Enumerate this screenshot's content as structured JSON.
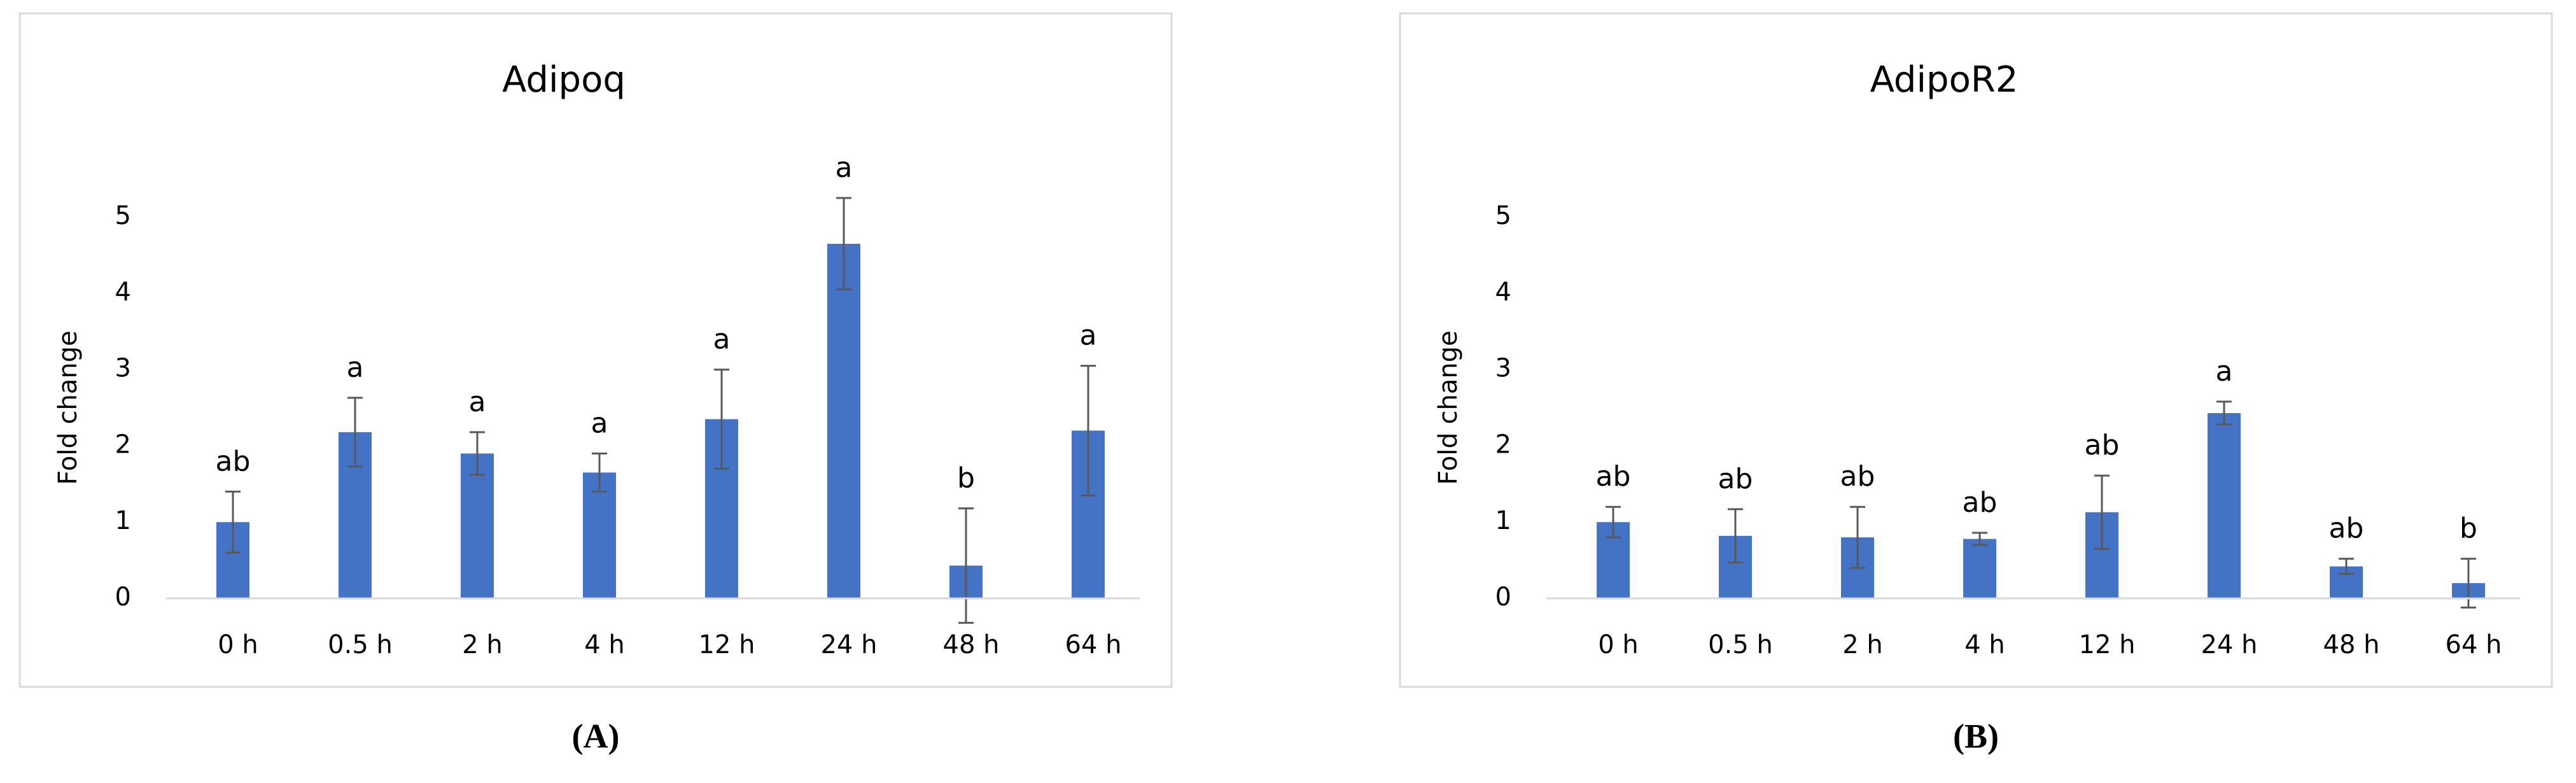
{
  "chart_data": [
    {
      "type": "bar",
      "title": "Adipoq",
      "ylabel": "Fold change",
      "caption": "(A)",
      "categories": [
        "0 h",
        "0.5 h",
        "2 h",
        "4 h",
        "12 h",
        "24 h",
        "48 h",
        "64 h"
      ],
      "values": [
        1.0,
        2.18,
        1.9,
        1.65,
        2.35,
        4.65,
        0.43,
        2.2
      ],
      "errors": [
        0.4,
        0.45,
        0.28,
        0.25,
        0.65,
        0.6,
        0.75,
        0.85
      ],
      "annotations": [
        "ab",
        "a",
        "a",
        "a",
        "a",
        "a",
        "b",
        "a"
      ],
      "color": "#4472c4",
      "ylim": [
        0,
        5
      ],
      "yticks": [
        0,
        1,
        2,
        3,
        4,
        5
      ]
    },
    {
      "type": "bar",
      "title": "AdipoR2",
      "ylabel": "Fold change",
      "caption": "(B)",
      "categories": [
        "0 h",
        "0.5 h",
        "2 h",
        "4 h",
        "12 h",
        "24 h",
        "48 h",
        "64 h"
      ],
      "values": [
        1.0,
        0.82,
        0.8,
        0.78,
        1.13,
        2.43,
        0.42,
        0.2
      ],
      "errors": [
        0.2,
        0.35,
        0.4,
        0.08,
        0.48,
        0.15,
        0.1,
        0.32
      ],
      "annotations": [
        "ab",
        "ab",
        "ab",
        "ab",
        "ab",
        "a",
        "ab",
        "b"
      ],
      "color": "#4472c4",
      "ylim": [
        0,
        5
      ],
      "yticks": [
        0,
        1,
        2,
        3,
        4,
        5
      ]
    }
  ]
}
